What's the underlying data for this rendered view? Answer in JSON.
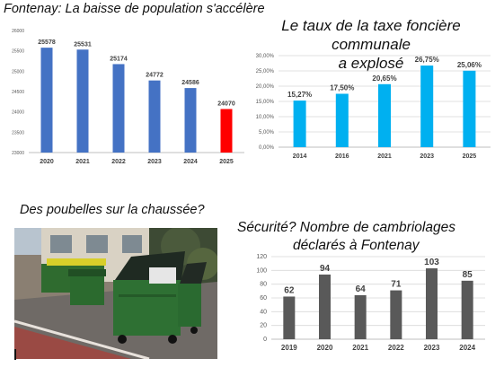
{
  "titles": {
    "population": "Fontenay: La baisse de population s'accélère",
    "tax_line1": "Le taux de la taxe foncière communale",
    "tax_line2": "a explosé",
    "bins": "Des poubelles sur la chaussée?",
    "security_line1": "Sécurité? Nombre de cambriolages",
    "security_line2": "déclarés à Fontenay"
  },
  "chart_data": [
    {
      "type": "bar",
      "categories": [
        "2020",
        "2021",
        "2022",
        "2023",
        "2024",
        "2025"
      ],
      "values": [
        25578,
        25531,
        25174,
        24772,
        24586,
        24070
      ],
      "ylim": [
        23000,
        26000
      ],
      "yticks": [
        "23000",
        "23500",
        "24000",
        "24500",
        "25000",
        "25500",
        "26000"
      ],
      "bar_colors": [
        "#4472c4",
        "#4472c4",
        "#4472c4",
        "#4472c4",
        "#4472c4",
        "#ff0000"
      ],
      "grid": false
    },
    {
      "type": "bar",
      "categories": [
        "2014",
        "2016",
        "2021",
        "2023",
        "2025"
      ],
      "values": [
        15.27,
        17.5,
        20.65,
        26.75,
        25.06
      ],
      "labels": [
        "15,27%",
        "17,50%",
        "20,65%",
        "26,75%",
        "25,06%"
      ],
      "ylim": [
        0,
        30
      ],
      "yticks": [
        "0,00%",
        "5,00%",
        "10,00%",
        "15,00%",
        "20,00%",
        "25,00%",
        "30,00%"
      ],
      "bar_color": "#00b0f0",
      "grid": true
    },
    {
      "type": "bar",
      "categories": [
        "2019",
        "2020",
        "2021",
        "2022",
        "2023",
        "2024"
      ],
      "values": [
        62,
        94,
        64,
        71,
        103,
        85
      ],
      "labels": [
        "62",
        "94",
        "64",
        "71",
        "103",
        "85"
      ],
      "ylim": [
        0,
        120
      ],
      "yticks": [
        "0",
        "20",
        "40",
        "60",
        "80",
        "100",
        "120"
      ],
      "bar_color": "#595959",
      "grid": true
    }
  ]
}
